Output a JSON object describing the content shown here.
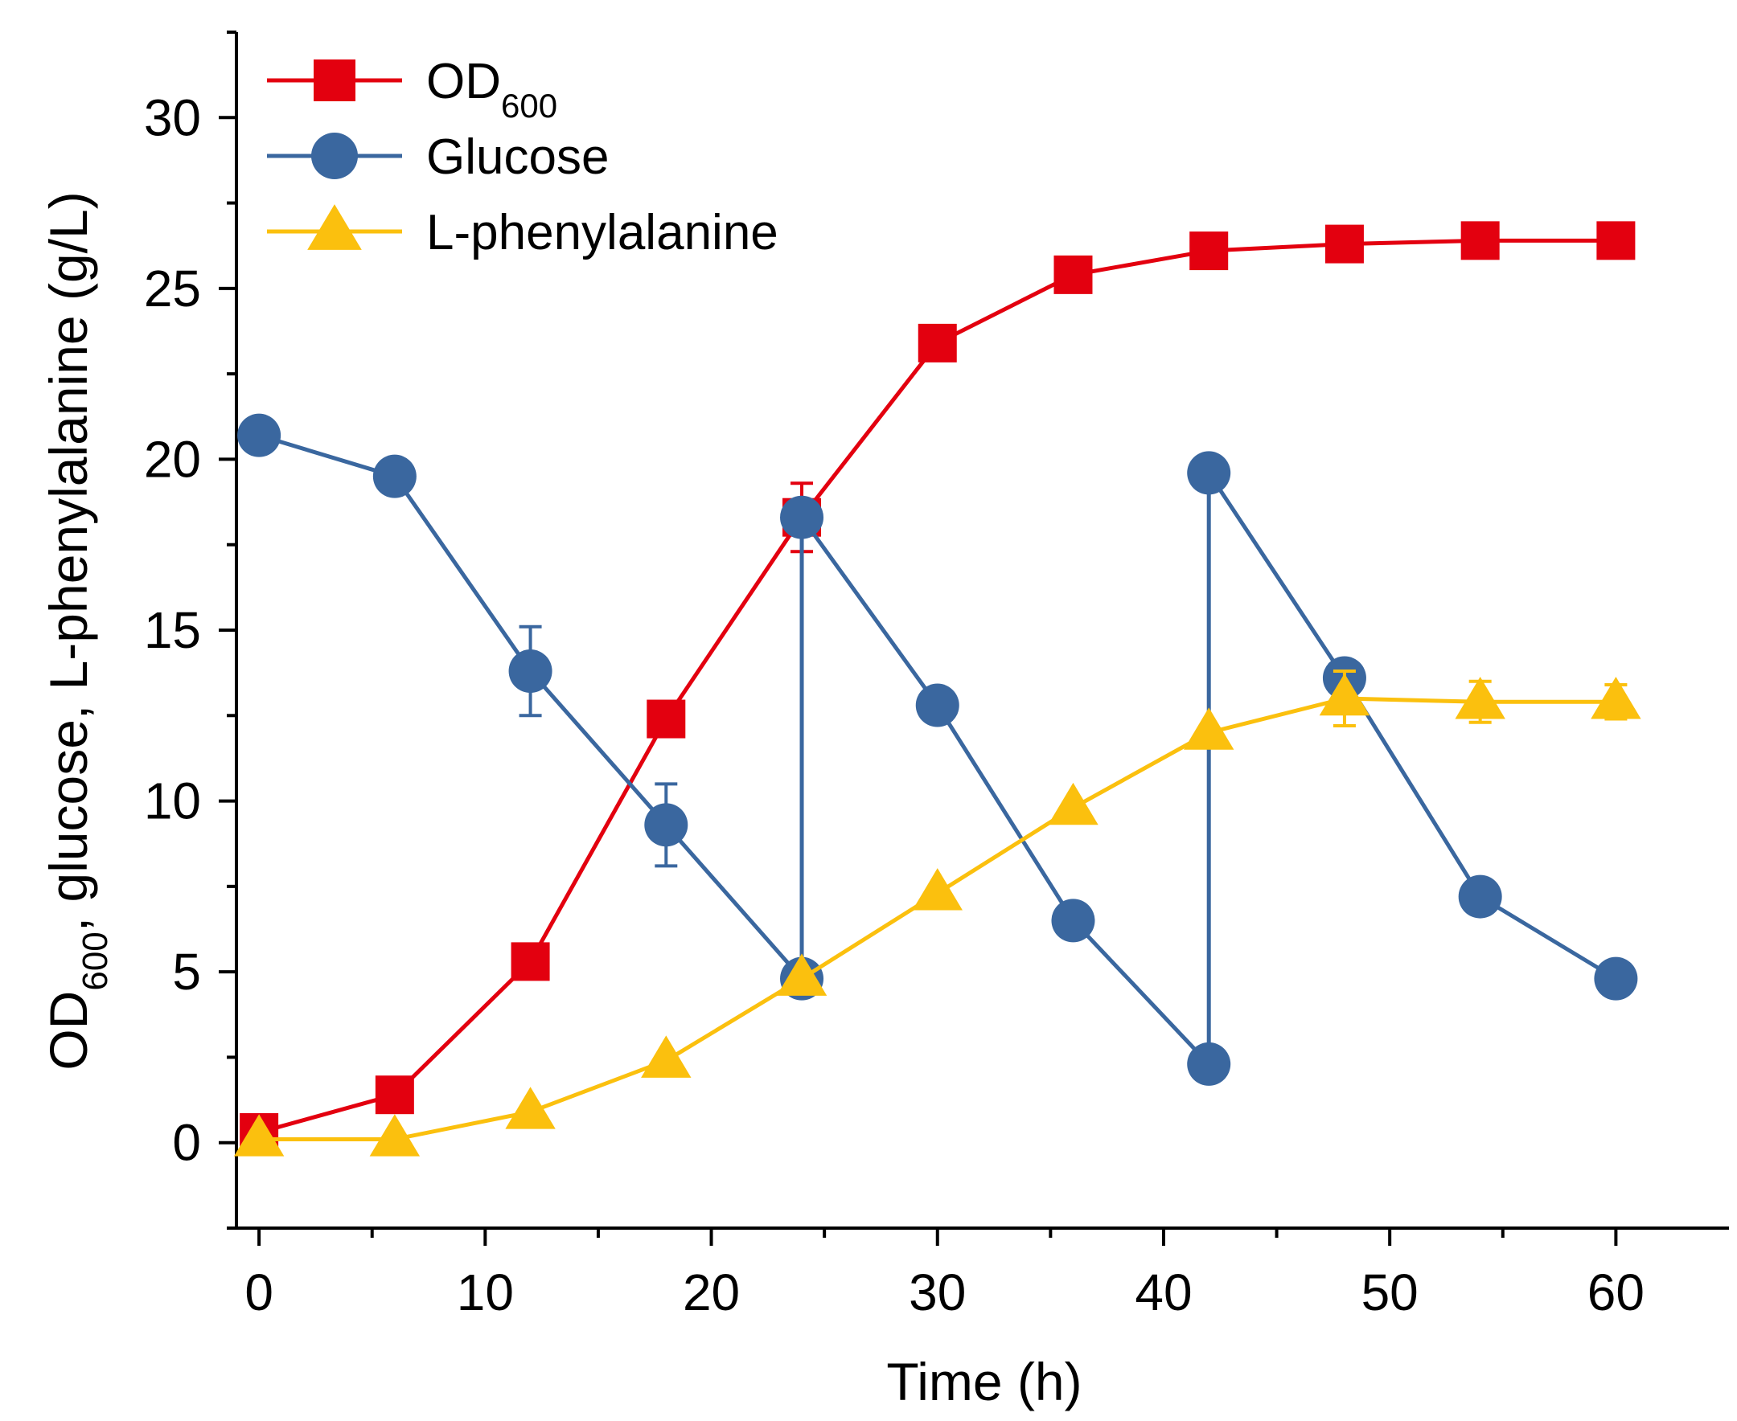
{
  "chart_data": {
    "type": "line",
    "title": "",
    "xlabel": "Time (h)",
    "ylabel_parts": {
      "prefix": "OD",
      "subscript": "600",
      "suffix": ", glucose, L-phenylalanine (g/L)"
    },
    "xlim": [
      -1,
      65
    ],
    "ylim": [
      -2.5,
      32.5
    ],
    "x_ticks": [
      0,
      10,
      20,
      30,
      40,
      50,
      60
    ],
    "x_tick_labels": [
      "0",
      "10",
      "20",
      "30",
      "40",
      "50",
      "60"
    ],
    "x_minor_ticks": [
      5,
      15,
      25,
      35,
      45,
      55
    ],
    "y_ticks": [
      0,
      5,
      10,
      15,
      20,
      25,
      30
    ],
    "y_tick_labels": [
      "0",
      "5",
      "10",
      "15",
      "20",
      "25",
      "30"
    ],
    "y_minor_ticks": [
      -2.5,
      2.5,
      7.5,
      12.5,
      17.5,
      22.5,
      27.5,
      32.5
    ],
    "legend_position": "top-left",
    "series": [
      {
        "name": "OD600",
        "legend_prefix": "OD",
        "legend_subscript": "600",
        "color": "#e3000f",
        "marker": "square",
        "x": [
          0,
          6,
          12,
          18,
          24,
          30,
          36,
          42,
          48,
          54,
          60
        ],
        "values": [
          0.3,
          1.4,
          5.3,
          12.4,
          18.3,
          23.4,
          25.4,
          26.1,
          26.3,
          26.4,
          26.4
        ],
        "errors": [
          0.4,
          0,
          0,
          0,
          1.0,
          0,
          0,
          0,
          0,
          0,
          0
        ]
      },
      {
        "name": "Glucose",
        "legend_prefix": "Glucose",
        "legend_subscript": "",
        "color": "#3a679f",
        "marker": "circle",
        "x": [
          0,
          6,
          12,
          18,
          24,
          24,
          30,
          36,
          42,
          42,
          48,
          54,
          60
        ],
        "values": [
          20.7,
          19.5,
          13.8,
          9.3,
          4.8,
          18.3,
          12.8,
          6.5,
          2.3,
          19.6,
          13.6,
          7.2,
          4.8
        ],
        "errors": [
          0,
          0,
          1.3,
          1.2,
          0.3,
          0,
          0,
          0,
          0,
          0,
          0,
          0,
          0
        ]
      },
      {
        "name": "L-phenylalanine",
        "legend_prefix": "L-phenylalanine",
        "legend_subscript": "",
        "color": "#fbc00e",
        "marker": "triangle",
        "x": [
          0,
          6,
          12,
          18,
          24,
          30,
          36,
          42,
          48,
          54,
          60
        ],
        "values": [
          0.1,
          0.1,
          0.9,
          2.4,
          4.8,
          7.3,
          9.8,
          12.0,
          13.0,
          12.9,
          12.9
        ],
        "errors": [
          0,
          0,
          0,
          0,
          0,
          0,
          0,
          0,
          0.8,
          0.6,
          0.5
        ]
      }
    ]
  }
}
